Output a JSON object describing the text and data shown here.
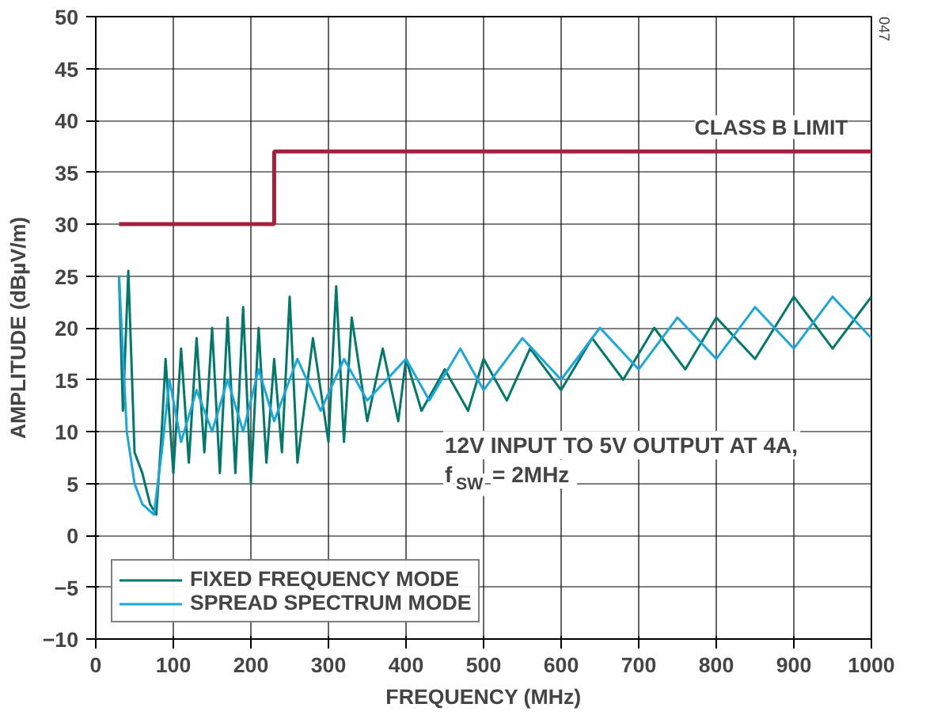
{
  "chart_data": {
    "type": "line",
    "xlabel": "FREQUENCY (MHz)",
    "ylabel": "AMPLITUDE (dBµV/m)",
    "xlim": [
      0,
      1000
    ],
    "ylim": [
      -10,
      50
    ],
    "xticks": [
      0,
      100,
      200,
      300,
      400,
      500,
      600,
      700,
      800,
      900,
      1000
    ],
    "yticks": [
      {
        "value": -10,
        "label": "−10"
      },
      {
        "value": -5,
        "label": "−5"
      },
      0,
      5,
      10,
      15,
      20,
      25,
      30,
      35,
      40,
      45,
      50
    ],
    "grid": true,
    "legend": "bottom left",
    "series": [
      {
        "name": "FIXED FREQUENCY MODE",
        "color": "#00796b",
        "x": [
          30,
          35,
          42,
          50,
          60,
          70,
          78,
          85,
          90,
          100,
          110,
          120,
          130,
          140,
          150,
          160,
          170,
          180,
          190,
          200,
          210,
          220,
          230,
          240,
          250,
          260,
          280,
          300,
          310,
          320,
          330,
          350,
          370,
          390,
          400,
          420,
          450,
          480,
          500,
          530,
          560,
          600,
          640,
          680,
          720,
          760,
          800,
          850,
          900,
          950,
          1000
        ],
        "values": [
          25,
          12,
          25.5,
          8,
          6,
          3,
          2,
          10,
          17,
          6,
          18,
          7,
          19,
          8,
          20,
          6,
          21,
          6,
          22,
          5,
          20,
          7,
          17,
          8,
          23,
          7,
          19,
          9,
          24,
          9,
          21,
          11,
          18,
          11,
          17,
          12,
          16,
          12,
          17,
          13,
          18,
          14,
          19,
          15,
          20,
          16,
          21,
          17,
          23,
          18,
          23
        ]
      },
      {
        "name": "SPREAD SPECTRUM MODE",
        "color": "#1aa7dc",
        "x": [
          30,
          40,
          50,
          60,
          75,
          85,
          95,
          110,
          130,
          150,
          170,
          190,
          210,
          230,
          260,
          290,
          320,
          350,
          400,
          430,
          470,
          500,
          550,
          600,
          650,
          700,
          750,
          800,
          850,
          900,
          950,
          1000
        ],
        "values": [
          25,
          10,
          5,
          3,
          2,
          8,
          15,
          9,
          14,
          10,
          15,
          10,
          16,
          11,
          17,
          12,
          17,
          13,
          17,
          13,
          18,
          14,
          19,
          15,
          20,
          16,
          21,
          17,
          22,
          18,
          23,
          19
        ]
      },
      {
        "name": "CLASS B LIMIT",
        "type": "step",
        "color": "#a3203f",
        "x": [
          30,
          230,
          1000
        ],
        "values": [
          30,
          37,
          37
        ]
      }
    ],
    "annotations": [
      "12V INPUT TO 5V OUTPUT AT 4A,",
      "f$_{SW}$ = 2MHz",
      "047"
    ]
  }
}
